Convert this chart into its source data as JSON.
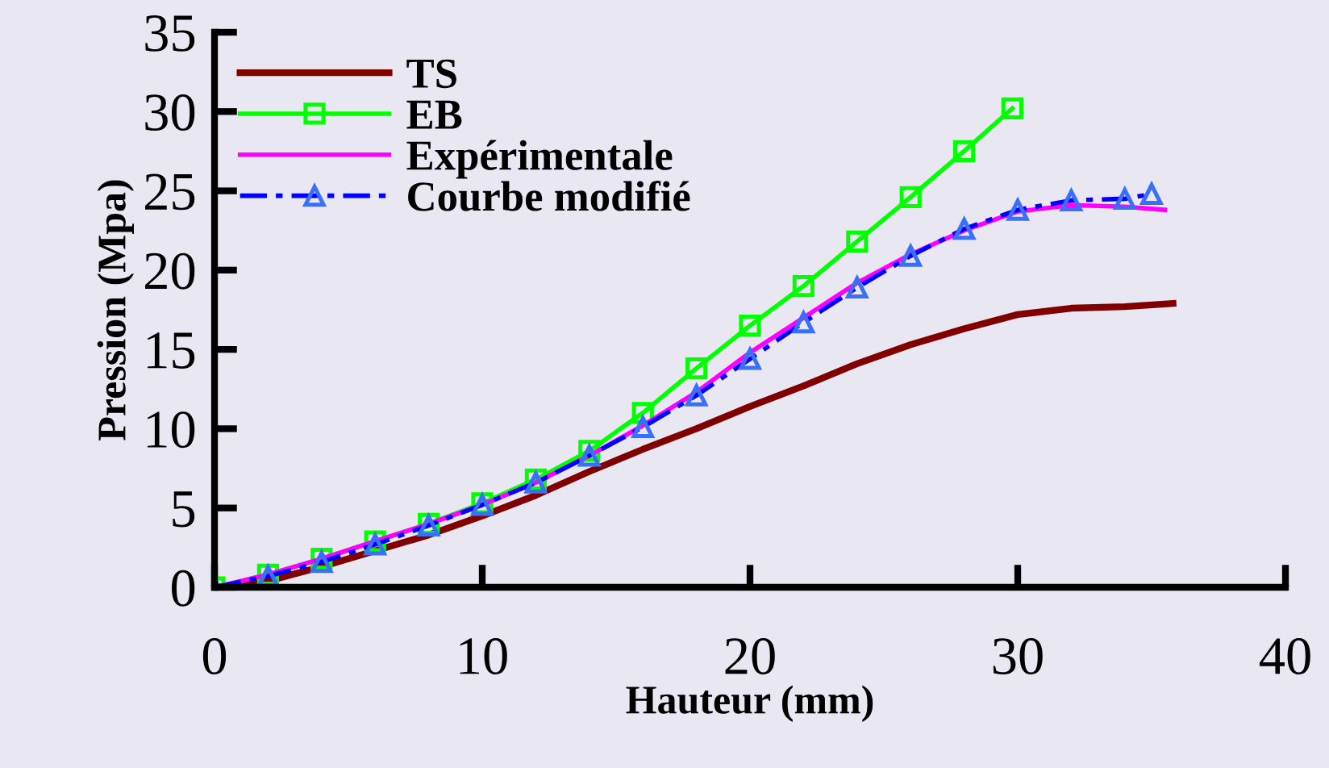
{
  "chart_data": {
    "type": "line",
    "xlabel": "Hauteur (mm)",
    "ylabel": "Pression (Mpa)",
    "xlim": [
      0,
      40
    ],
    "xticks": [
      0,
      10,
      20,
      30,
      40
    ],
    "ylim": [
      0,
      35
    ],
    "yticks": [
      0,
      5,
      10,
      15,
      20,
      25,
      30,
      35
    ],
    "grid": false,
    "legend": "top left",
    "series": [
      {
        "name": "TS",
        "color": "#800000",
        "marker": "none",
        "line_style": "solid",
        "x": [
          0,
          2,
          4,
          6,
          8,
          10,
          12,
          14,
          16,
          18,
          20,
          22,
          24,
          26,
          28,
          30,
          32,
          34,
          35.8
        ],
        "values": [
          0,
          0.4,
          1.3,
          2.3,
          3.3,
          4.5,
          5.8,
          7.3,
          8.7,
          10.0,
          11.4,
          12.7,
          14.1,
          15.3,
          16.3,
          17.2,
          17.6,
          17.7,
          17.9
        ]
      },
      {
        "name": "EB",
        "color": "#00ff00",
        "marker": "square",
        "line_style": "solid",
        "x": [
          0,
          2,
          4,
          6,
          8,
          10,
          12,
          14,
          16,
          18,
          20,
          22,
          24,
          26,
          28,
          29.8
        ],
        "values": [
          0,
          0.8,
          1.8,
          2.9,
          4.0,
          5.3,
          6.8,
          8.6,
          11.0,
          13.8,
          16.5,
          19.0,
          21.8,
          24.6,
          27.5,
          30.2
        ]
      },
      {
        "name": "Expérimentale",
        "color": "#ff00ff",
        "marker": "none",
        "line_style": "solid",
        "x": [
          0,
          2,
          4,
          6,
          8,
          10,
          12,
          14,
          16,
          18,
          20,
          22,
          24,
          26,
          28,
          30,
          32,
          34,
          35.5
        ],
        "values": [
          0,
          0.8,
          1.8,
          2.9,
          4.0,
          5.2,
          6.6,
          8.3,
          10.2,
          12.3,
          14.8,
          17.0,
          19.2,
          21.0,
          22.5,
          23.7,
          24.1,
          24.0,
          23.8
        ]
      },
      {
        "name": "Courbe modifié",
        "color": "#0000ff",
        "marker": "triangle",
        "line_style": "dashed",
        "x": [
          0,
          2,
          4,
          6,
          8,
          10,
          12,
          14,
          16,
          18,
          20,
          22,
          24,
          26,
          28,
          30,
          32,
          34,
          35
        ],
        "values": [
          0,
          0.7,
          1.6,
          2.7,
          3.9,
          5.2,
          6.6,
          8.3,
          10.1,
          12.1,
          14.4,
          16.7,
          18.9,
          20.9,
          22.6,
          23.8,
          24.4,
          24.5,
          24.8
        ]
      }
    ]
  }
}
